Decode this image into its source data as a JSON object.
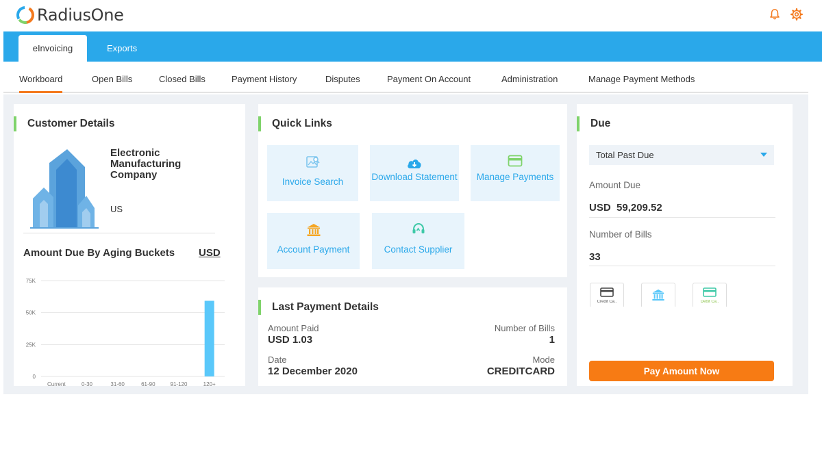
{
  "app": {
    "brand": "RadiusOne"
  },
  "header": {
    "icons": [
      "bell-icon",
      "settings-gear-icon"
    ]
  },
  "main_tabs": [
    {
      "label": "eInvoicing",
      "active": true
    },
    {
      "label": "Exports",
      "active": false
    }
  ],
  "nav": {
    "items": [
      {
        "label": "Workboard",
        "active": true
      },
      {
        "label": "Open Bills"
      },
      {
        "label": "Closed Bills"
      },
      {
        "label": "Payment History"
      },
      {
        "label": "Disputes"
      },
      {
        "label": "Payment On Account"
      },
      {
        "label": "Administration"
      },
      {
        "label": "Manage Payment Methods"
      }
    ]
  },
  "customer": {
    "title": "Customer Details",
    "company_name": "Electronic Manufacturing Company",
    "country": "US",
    "aging_title": "Amount Due By Aging Buckets",
    "aging_currency": "USD"
  },
  "chart_data": {
    "type": "bar",
    "categories": [
      "Current",
      "0-30",
      "31-60",
      "61-90",
      "91-120",
      "120+"
    ],
    "values": [
      0,
      0,
      0,
      0,
      0,
      59209.52
    ],
    "yticks": [
      "0",
      "25K",
      "50K",
      "75K"
    ],
    "ylim": [
      0,
      75000
    ],
    "bar_color": "#5ac8fa",
    "grid": true
  },
  "quick_links": {
    "title": "Quick Links",
    "items": [
      {
        "label": "Invoice Search",
        "icon": "image-search-icon",
        "color": "#7fc6ee"
      },
      {
        "label": "Download Statement",
        "icon": "cloud-download-icon",
        "color": "#2aa8ea"
      },
      {
        "label": "Manage Payments",
        "icon": "card-icon",
        "color": "#7fd36b"
      },
      {
        "label": "Account Payment",
        "icon": "bank-icon",
        "color": "#f5a623"
      },
      {
        "label": "Contact Supplier",
        "icon": "headset-icon",
        "color": "#3ec9a7"
      }
    ]
  },
  "last_payment": {
    "title": "Last Payment Details",
    "amount_paid_label": "Amount Paid",
    "amount_paid": "USD 1.03",
    "bills_label": "Number of Bills",
    "bills": "1",
    "date_label": "Date",
    "date": "12 December 2020",
    "mode_label": "Mode",
    "mode": "CREDITCARD"
  },
  "due": {
    "title": "Due",
    "filter_selected": "Total Past Due",
    "amount_label": "Amount Due",
    "currency": "USD",
    "amount": "59,209.52",
    "bills_label": "Number of Bills",
    "bills": "33",
    "payment_methods": [
      {
        "caption": "Credit Ca..",
        "icon": "credit-card-icon"
      },
      {
        "caption": "",
        "icon": "bank-icon"
      },
      {
        "caption": "Debit Ca..",
        "icon": "debit-card-icon"
      }
    ],
    "pay_button": "Pay Amount Now"
  },
  "colors": {
    "primary": "#2aa8ea",
    "accent": "#f47a1f",
    "pay_button": "#f77b14",
    "card_marker": "#7fd36b",
    "background": "#eef1f5"
  }
}
